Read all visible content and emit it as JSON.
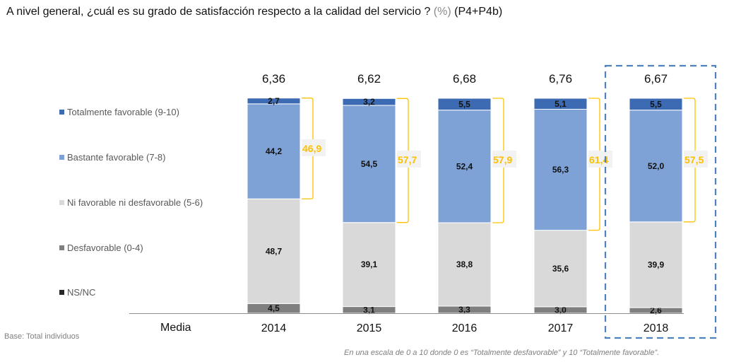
{
  "title": {
    "main": "A nivel general, ¿cuál es su grado de satisfacción respecto a la calidad del servicio ?",
    "pct": "(%)",
    "code": "(P4+P4b)"
  },
  "base_note": "Base: Total individuos",
  "scale_note": "En una escala de 0 a 10 donde 0 es “Totalmente desfavorable” y 10 “Totalmente favorable”.",
  "media_label": "Media",
  "colors": {
    "totalmente": "#3d6bb3",
    "bastante": "#7ea1d6",
    "ni": "#d9d9d9",
    "desfavorable": "#7f7f7f",
    "nsnc": "#262626",
    "bracket": "#ffc000",
    "highlight_box": "#4f81bd"
  },
  "chart_data": {
    "type": "bar",
    "stacked": true,
    "title": "A nivel general, ¿cuál es su grado de satisfacción respecto a la calidad del servicio ? (%) (P4+P4b)",
    "xlabel": "",
    "ylabel": "",
    "ylim": [
      0,
      100
    ],
    "grid": false,
    "legend_position": "left",
    "categories": [
      "2014",
      "2015",
      "2016",
      "2017",
      "2018"
    ],
    "series": [
      {
        "key": "nsnc",
        "name": "NS/NC",
        "values": [
          0,
          0,
          0,
          0,
          0
        ]
      },
      {
        "key": "desfavorable",
        "name": "Desfavorable (0-4)",
        "values": [
          4.5,
          3.1,
          3.3,
          3.0,
          2.6
        ],
        "labels": [
          "4,5",
          "3,1",
          "3,3",
          "3,0",
          "2,6"
        ]
      },
      {
        "key": "ni",
        "name": "Ni favorable ni desfavorable (5-6)",
        "values": [
          48.7,
          39.1,
          38.8,
          35.6,
          39.9
        ],
        "labels": [
          "48,7",
          "39,1",
          "38,8",
          "35,6",
          "39,9"
        ]
      },
      {
        "key": "bastante",
        "name": "Bastante favorable (7-8)",
        "values": [
          44.2,
          54.5,
          52.4,
          56.3,
          52.0
        ],
        "labels": [
          "44,2",
          "54,5",
          "52,4",
          "56,3",
          "52,0"
        ]
      },
      {
        "key": "totalmente",
        "name": "Totalmente favorable (9-10)",
        "values": [
          2.7,
          3.2,
          5.5,
          5.1,
          5.5
        ],
        "labels": [
          "2,7",
          "3,2",
          "5,5",
          "5,1",
          "5,5"
        ]
      }
    ],
    "means": [
      "6,36",
      "6,62",
      "6,68",
      "6,76",
      "6,67"
    ],
    "favorable_totals": [
      "46,9",
      "57,7",
      "57,9",
      "61,4",
      "57,5"
    ],
    "highlighted_category": "2018"
  },
  "legend": [
    {
      "key": "totalmente",
      "label": "Totalmente favorable (9-10)"
    },
    {
      "key": "bastante",
      "label": "Bastante favorable (7-8)"
    },
    {
      "key": "ni",
      "label": "Ni favorable ni desfavorable (5-6)"
    },
    {
      "key": "desfavorable",
      "label": "Desfavorable (0-4)"
    },
    {
      "key": "nsnc",
      "label": "NS/NC"
    }
  ]
}
